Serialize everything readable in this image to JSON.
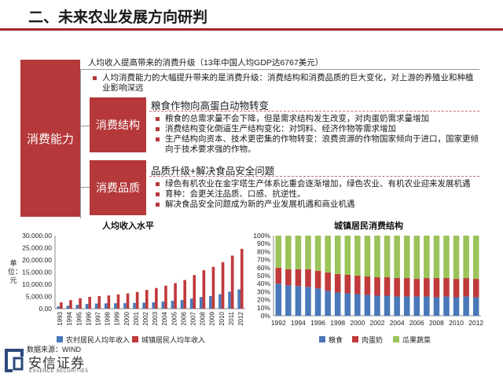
{
  "page": {
    "title": "二、未来农业发展方向研判"
  },
  "top": {
    "header": "人均收入提高带来的消费升级（13年中国人均GDP达6767美元）",
    "bullet": "人均消费能力的大幅提升带来的是消费升级：消费结构和消费品质的巨大变化，对上游的养殖业和种植业影响深远"
  },
  "boxes": {
    "main": "消费能力",
    "structure": "消费结构",
    "quality": "消费品质"
  },
  "structure": {
    "heading": "粮食作物向高蛋白动物转变",
    "bullets": [
      "粮食的总需求量不会下降，但是需求结构发生改变，对肉蛋奶需求量增加",
      "消费结构变化倒逼生产结构变化：对饲料、经济作物等需求增加",
      "生产结构向资本、技术更密集的作物转变：浪费资源的作物国家倾向于进口，国家更倾向于技术要求强的作物。"
    ]
  },
  "quality": {
    "heading": "品质升级+解决食品安全问题",
    "bullets": [
      "绿色有机农业在金字塔生产体系比重会逐渐增加，绿色农业、有机农业迎来发展机遇",
      "育种：会更关注品质、口感、抗逆性。",
      "解决食品安全问题成为新的产业发展机遇和商业机遇"
    ]
  },
  "chart_data": [
    {
      "type": "bar",
      "title": "人均收入水平",
      "ylabel": "单位：元",
      "ylim": [
        0,
        30000
      ],
      "yticks": [
        "0.00",
        "5,000.00",
        "10,000.00",
        "15,000.00",
        "20,000.00",
        "25,000.00",
        "30,000.00"
      ],
      "categories": [
        "1993",
        "1994",
        "1995",
        "1996",
        "1997",
        "1998",
        "1999",
        "2000",
        "2001",
        "2002",
        "2003",
        "2004",
        "2005",
        "2006",
        "2007",
        "2008",
        "2009",
        "2010",
        "2011",
        "2012"
      ],
      "series": [
        {
          "name": "农村居民人均年收入",
          "color": "#4a78b8",
          "values": [
            922,
            1221,
            1578,
            1926,
            2090,
            2162,
            2210,
            2253,
            2366,
            2476,
            2622,
            2936,
            3255,
            3587,
            4140,
            4761,
            5153,
            5919,
            6977,
            7917
          ]
        },
        {
          "name": "城镇居民人均年收入",
          "color": "#c0393b",
          "values": [
            2577,
            3496,
            4283,
            4839,
            5160,
            5425,
            5854,
            6280,
            6860,
            7703,
            8472,
            9422,
            10493,
            11759,
            13786,
            15781,
            17175,
            19109,
            21810,
            24565
          ]
        }
      ],
      "source": "数据来源：WIND"
    },
    {
      "type": "bar",
      "stacked": true,
      "title": "城镇居民消费结构",
      "ylim": [
        0,
        100
      ],
      "yticks": [
        "0%",
        "10%",
        "20%",
        "30%",
        "40%",
        "50%",
        "60%",
        "70%",
        "80%",
        "90%",
        "100%"
      ],
      "categories": [
        "1992",
        "1993",
        "1994",
        "1995",
        "1996",
        "1997",
        "1998",
        "1999",
        "2000",
        "2001",
        "2002",
        "2003",
        "2004",
        "2005",
        "2006",
        "2007",
        "2008",
        "2009",
        "2010",
        "2011",
        "2012"
      ],
      "xticks": [
        "1992",
        "1994",
        "1996",
        "1998",
        "2000",
        "2002",
        "2004",
        "2006",
        "2008",
        "2010",
        "2012"
      ],
      "series": [
        {
          "name": "粮食",
          "color": "#4a78b8",
          "values": [
            40,
            38,
            37,
            36,
            34,
            31,
            29,
            28,
            27,
            26,
            25,
            25,
            24,
            24,
            24,
            24,
            23,
            24,
            23,
            24,
            23
          ]
        },
        {
          "name": "肉蛋奶",
          "color": "#c0393b",
          "values": [
            20,
            20,
            21,
            22,
            22,
            23,
            23,
            23,
            23,
            23,
            23,
            23,
            23,
            23,
            22,
            23,
            24,
            23,
            23,
            23,
            23
          ]
        },
        {
          "name": "瓜果蔬菜",
          "color": "#9bc35a",
          "values": [
            40,
            42,
            42,
            42,
            44,
            46,
            48,
            49,
            50,
            51,
            52,
            52,
            53,
            53,
            54,
            53,
            53,
            53,
            54,
            53,
            54
          ]
        }
      ]
    }
  ],
  "logo": {
    "name": "安信证券",
    "sub": "ESSENCE SECURITIES"
  }
}
